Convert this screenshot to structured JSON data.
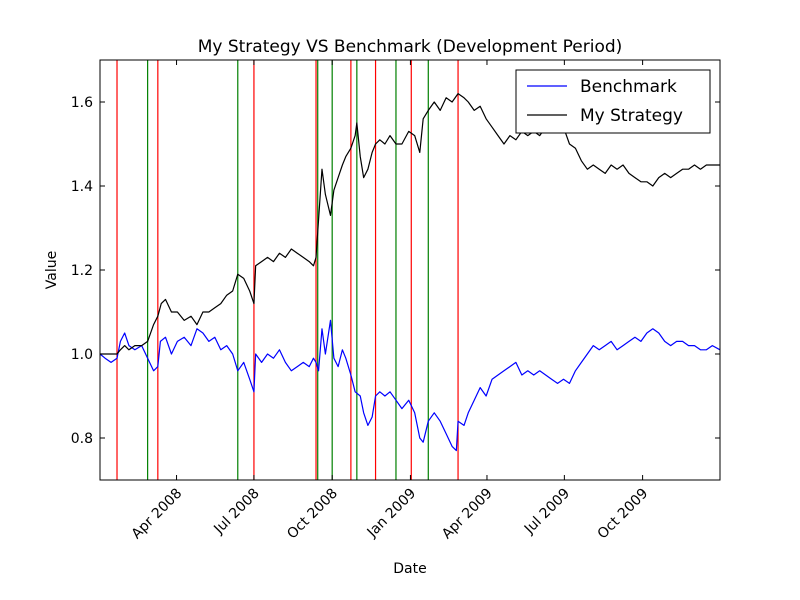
{
  "chart_data": {
    "type": "line",
    "title": "My Strategy VS Benchmark (Development Period)",
    "xlabel": "Date",
    "ylabel": "Value",
    "xlim": [
      "2008-01-02",
      "2009-12-31"
    ],
    "ylim": [
      0.7,
      1.7
    ],
    "yticks": [
      0.8,
      1.0,
      1.2,
      1.4,
      1.6
    ],
    "ytick_labels": [
      "0.8",
      "1.0",
      "1.2",
      "1.4",
      "1.6"
    ],
    "xticks": [
      "2008-04-01",
      "2008-07-01",
      "2008-10-01",
      "2009-01-01",
      "2009-04-01",
      "2009-07-01",
      "2009-10-01"
    ],
    "xtick_labels": [
      "Apr 2008",
      "Jul 2008",
      "Oct 2008",
      "Jan 2009",
      "Apr 2009",
      "Jul 2009",
      "Oct 2009"
    ],
    "grid": false,
    "legend": {
      "position": "top-right",
      "entries": [
        "Benchmark",
        "My Strategy"
      ]
    },
    "vlines_red": [
      "2008-01-22",
      "2008-03-10",
      "2008-07-01",
      "2008-09-12",
      "2008-10-23",
      "2008-11-21",
      "2009-01-02",
      "2009-02-26"
    ],
    "vlines_green": [
      "2008-02-27",
      "2008-06-12",
      "2008-09-14",
      "2008-10-01",
      "2008-10-30",
      "2008-12-15",
      "2009-01-22"
    ],
    "series": [
      {
        "name": "Benchmark",
        "color": "#0000ff",
        "points": [
          [
            "2008-01-02",
            1.0
          ],
          [
            "2008-01-08",
            0.99
          ],
          [
            "2008-01-15",
            0.98
          ],
          [
            "2008-01-22",
            0.99
          ],
          [
            "2008-01-26",
            1.03
          ],
          [
            "2008-01-31",
            1.05
          ],
          [
            "2008-02-05",
            1.02
          ],
          [
            "2008-02-12",
            1.01
          ],
          [
            "2008-02-20",
            1.02
          ],
          [
            "2008-02-27",
            0.99
          ],
          [
            "2008-03-05",
            0.96
          ],
          [
            "2008-03-10",
            0.97
          ],
          [
            "2008-03-13",
            1.03
          ],
          [
            "2008-03-19",
            1.04
          ],
          [
            "2008-03-26",
            1.0
          ],
          [
            "2008-04-02",
            1.03
          ],
          [
            "2008-04-10",
            1.04
          ],
          [
            "2008-04-18",
            1.02
          ],
          [
            "2008-04-25",
            1.06
          ],
          [
            "2008-05-02",
            1.05
          ],
          [
            "2008-05-09",
            1.03
          ],
          [
            "2008-05-16",
            1.04
          ],
          [
            "2008-05-23",
            1.01
          ],
          [
            "2008-05-30",
            1.02
          ],
          [
            "2008-06-06",
            1.0
          ],
          [
            "2008-06-12",
            0.96
          ],
          [
            "2008-06-19",
            0.98
          ],
          [
            "2008-06-26",
            0.94
          ],
          [
            "2008-07-01",
            0.91
          ],
          [
            "2008-07-03",
            1.0
          ],
          [
            "2008-07-10",
            0.98
          ],
          [
            "2008-07-17",
            1.0
          ],
          [
            "2008-07-24",
            0.99
          ],
          [
            "2008-07-31",
            1.01
          ],
          [
            "2008-08-07",
            0.98
          ],
          [
            "2008-08-14",
            0.96
          ],
          [
            "2008-08-21",
            0.97
          ],
          [
            "2008-08-28",
            0.98
          ],
          [
            "2008-09-04",
            0.97
          ],
          [
            "2008-09-09",
            0.99
          ],
          [
            "2008-09-12",
            0.98
          ],
          [
            "2008-09-15",
            0.96
          ],
          [
            "2008-09-19",
            1.06
          ],
          [
            "2008-09-23",
            1.0
          ],
          [
            "2008-09-29",
            1.08
          ],
          [
            "2008-10-03",
            0.99
          ],
          [
            "2008-10-08",
            0.97
          ],
          [
            "2008-10-13",
            1.01
          ],
          [
            "2008-10-17",
            0.99
          ],
          [
            "2008-10-23",
            0.95
          ],
          [
            "2008-10-28",
            0.91
          ],
          [
            "2008-11-03",
            0.9
          ],
          [
            "2008-11-07",
            0.86
          ],
          [
            "2008-11-12",
            0.83
          ],
          [
            "2008-11-17",
            0.85
          ],
          [
            "2008-11-21",
            0.9
          ],
          [
            "2008-11-26",
            0.91
          ],
          [
            "2008-12-02",
            0.9
          ],
          [
            "2008-12-08",
            0.91
          ],
          [
            "2008-12-15",
            0.89
          ],
          [
            "2008-12-22",
            0.87
          ],
          [
            "2008-12-30",
            0.89
          ],
          [
            "2009-01-06",
            0.86
          ],
          [
            "2009-01-12",
            0.8
          ],
          [
            "2009-01-16",
            0.79
          ],
          [
            "2009-01-22",
            0.84
          ],
          [
            "2009-01-29",
            0.86
          ],
          [
            "2009-02-05",
            0.84
          ],
          [
            "2009-02-12",
            0.81
          ],
          [
            "2009-02-19",
            0.78
          ],
          [
            "2009-02-24",
            0.77
          ],
          [
            "2009-02-26",
            0.84
          ],
          [
            "2009-03-05",
            0.83
          ],
          [
            "2009-03-10",
            0.86
          ],
          [
            "2009-03-17",
            0.89
          ],
          [
            "2009-03-24",
            0.92
          ],
          [
            "2009-03-31",
            0.9
          ],
          [
            "2009-04-07",
            0.94
          ],
          [
            "2009-04-14",
            0.95
          ],
          [
            "2009-04-21",
            0.96
          ],
          [
            "2009-04-28",
            0.97
          ],
          [
            "2009-05-05",
            0.98
          ],
          [
            "2009-05-12",
            0.95
          ],
          [
            "2009-05-19",
            0.96
          ],
          [
            "2009-05-26",
            0.95
          ],
          [
            "2009-06-02",
            0.96
          ],
          [
            "2009-06-09",
            0.95
          ],
          [
            "2009-06-16",
            0.94
          ],
          [
            "2009-06-23",
            0.93
          ],
          [
            "2009-06-30",
            0.94
          ],
          [
            "2009-07-07",
            0.93
          ],
          [
            "2009-07-14",
            0.96
          ],
          [
            "2009-07-21",
            0.98
          ],
          [
            "2009-07-28",
            1.0
          ],
          [
            "2009-08-04",
            1.02
          ],
          [
            "2009-08-11",
            1.01
          ],
          [
            "2009-08-18",
            1.02
          ],
          [
            "2009-08-25",
            1.03
          ],
          [
            "2009-09-01",
            1.01
          ],
          [
            "2009-09-08",
            1.02
          ],
          [
            "2009-09-15",
            1.03
          ],
          [
            "2009-09-22",
            1.04
          ],
          [
            "2009-09-29",
            1.03
          ],
          [
            "2009-10-06",
            1.05
          ],
          [
            "2009-10-13",
            1.06
          ],
          [
            "2009-10-20",
            1.05
          ],
          [
            "2009-10-27",
            1.03
          ],
          [
            "2009-11-03",
            1.02
          ],
          [
            "2009-11-10",
            1.03
          ],
          [
            "2009-11-17",
            1.03
          ],
          [
            "2009-11-24",
            1.02
          ],
          [
            "2009-12-01",
            1.02
          ],
          [
            "2009-12-08",
            1.01
          ],
          [
            "2009-12-15",
            1.01
          ],
          [
            "2009-12-22",
            1.02
          ],
          [
            "2009-12-31",
            1.01
          ]
        ]
      },
      {
        "name": "My Strategy",
        "color": "#000000",
        "points": [
          [
            "2008-01-02",
            1.0
          ],
          [
            "2008-01-22",
            1.0
          ],
          [
            "2008-01-26",
            1.01
          ],
          [
            "2008-01-31",
            1.02
          ],
          [
            "2008-02-05",
            1.01
          ],
          [
            "2008-02-12",
            1.02
          ],
          [
            "2008-02-20",
            1.02
          ],
          [
            "2008-02-27",
            1.03
          ],
          [
            "2008-03-05",
            1.07
          ],
          [
            "2008-03-10",
            1.09
          ],
          [
            "2008-03-14",
            1.12
          ],
          [
            "2008-03-19",
            1.13
          ],
          [
            "2008-03-26",
            1.1
          ],
          [
            "2008-04-02",
            1.1
          ],
          [
            "2008-04-10",
            1.08
          ],
          [
            "2008-04-18",
            1.09
          ],
          [
            "2008-04-25",
            1.07
          ],
          [
            "2008-05-02",
            1.1
          ],
          [
            "2008-05-09",
            1.1
          ],
          [
            "2008-05-16",
            1.11
          ],
          [
            "2008-05-23",
            1.12
          ],
          [
            "2008-05-30",
            1.14
          ],
          [
            "2008-06-06",
            1.15
          ],
          [
            "2008-06-12",
            1.19
          ],
          [
            "2008-06-19",
            1.18
          ],
          [
            "2008-06-26",
            1.15
          ],
          [
            "2008-07-01",
            1.12
          ],
          [
            "2008-07-03",
            1.21
          ],
          [
            "2008-07-10",
            1.22
          ],
          [
            "2008-07-17",
            1.23
          ],
          [
            "2008-07-24",
            1.22
          ],
          [
            "2008-07-31",
            1.24
          ],
          [
            "2008-08-07",
            1.23
          ],
          [
            "2008-08-14",
            1.25
          ],
          [
            "2008-08-21",
            1.24
          ],
          [
            "2008-08-28",
            1.23
          ],
          [
            "2008-09-04",
            1.22
          ],
          [
            "2008-09-09",
            1.21
          ],
          [
            "2008-09-12",
            1.23
          ],
          [
            "2008-09-15",
            1.32
          ],
          [
            "2008-09-19",
            1.44
          ],
          [
            "2008-09-23",
            1.38
          ],
          [
            "2008-09-29",
            1.33
          ],
          [
            "2008-10-03",
            1.39
          ],
          [
            "2008-10-08",
            1.42
          ],
          [
            "2008-10-13",
            1.45
          ],
          [
            "2008-10-17",
            1.47
          ],
          [
            "2008-10-23",
            1.49
          ],
          [
            "2008-10-28",
            1.52
          ],
          [
            "2008-10-30",
            1.55
          ],
          [
            "2008-11-03",
            1.47
          ],
          [
            "2008-11-07",
            1.42
          ],
          [
            "2008-11-12",
            1.44
          ],
          [
            "2008-11-17",
            1.48
          ],
          [
            "2008-11-21",
            1.5
          ],
          [
            "2008-11-26",
            1.51
          ],
          [
            "2008-12-02",
            1.5
          ],
          [
            "2008-12-08",
            1.52
          ],
          [
            "2008-12-15",
            1.5
          ],
          [
            "2008-12-22",
            1.5
          ],
          [
            "2008-12-30",
            1.53
          ],
          [
            "2009-01-06",
            1.52
          ],
          [
            "2009-01-12",
            1.48
          ],
          [
            "2009-01-16",
            1.56
          ],
          [
            "2009-01-22",
            1.58
          ],
          [
            "2009-01-29",
            1.6
          ],
          [
            "2009-02-05",
            1.58
          ],
          [
            "2009-02-12",
            1.61
          ],
          [
            "2009-02-19",
            1.6
          ],
          [
            "2009-02-26",
            1.62
          ],
          [
            "2009-03-05",
            1.61
          ],
          [
            "2009-03-10",
            1.6
          ],
          [
            "2009-03-17",
            1.58
          ],
          [
            "2009-03-24",
            1.59
          ],
          [
            "2009-03-31",
            1.56
          ],
          [
            "2009-04-07",
            1.54
          ],
          [
            "2009-04-14",
            1.52
          ],
          [
            "2009-04-21",
            1.5
          ],
          [
            "2009-04-28",
            1.52
          ],
          [
            "2009-05-05",
            1.51
          ],
          [
            "2009-05-12",
            1.53
          ],
          [
            "2009-05-19",
            1.52
          ],
          [
            "2009-05-26",
            1.53
          ],
          [
            "2009-06-02",
            1.52
          ],
          [
            "2009-06-09",
            1.54
          ],
          [
            "2009-06-16",
            1.53
          ],
          [
            "2009-06-23",
            1.55
          ],
          [
            "2009-06-30",
            1.54
          ],
          [
            "2009-07-07",
            1.5
          ],
          [
            "2009-07-14",
            1.49
          ],
          [
            "2009-07-21",
            1.46
          ],
          [
            "2009-07-28",
            1.44
          ],
          [
            "2009-08-04",
            1.45
          ],
          [
            "2009-08-11",
            1.44
          ],
          [
            "2009-08-18",
            1.43
          ],
          [
            "2009-08-25",
            1.45
          ],
          [
            "2009-09-01",
            1.44
          ],
          [
            "2009-09-08",
            1.45
          ],
          [
            "2009-09-15",
            1.43
          ],
          [
            "2009-09-22",
            1.42
          ],
          [
            "2009-09-29",
            1.41
          ],
          [
            "2009-10-06",
            1.41
          ],
          [
            "2009-10-13",
            1.4
          ],
          [
            "2009-10-20",
            1.42
          ],
          [
            "2009-10-27",
            1.43
          ],
          [
            "2009-11-03",
            1.42
          ],
          [
            "2009-11-10",
            1.43
          ],
          [
            "2009-11-17",
            1.44
          ],
          [
            "2009-11-24",
            1.44
          ],
          [
            "2009-12-01",
            1.45
          ],
          [
            "2009-12-08",
            1.44
          ],
          [
            "2009-12-15",
            1.45
          ],
          [
            "2009-12-22",
            1.45
          ],
          [
            "2009-12-31",
            1.45
          ]
        ]
      }
    ]
  }
}
